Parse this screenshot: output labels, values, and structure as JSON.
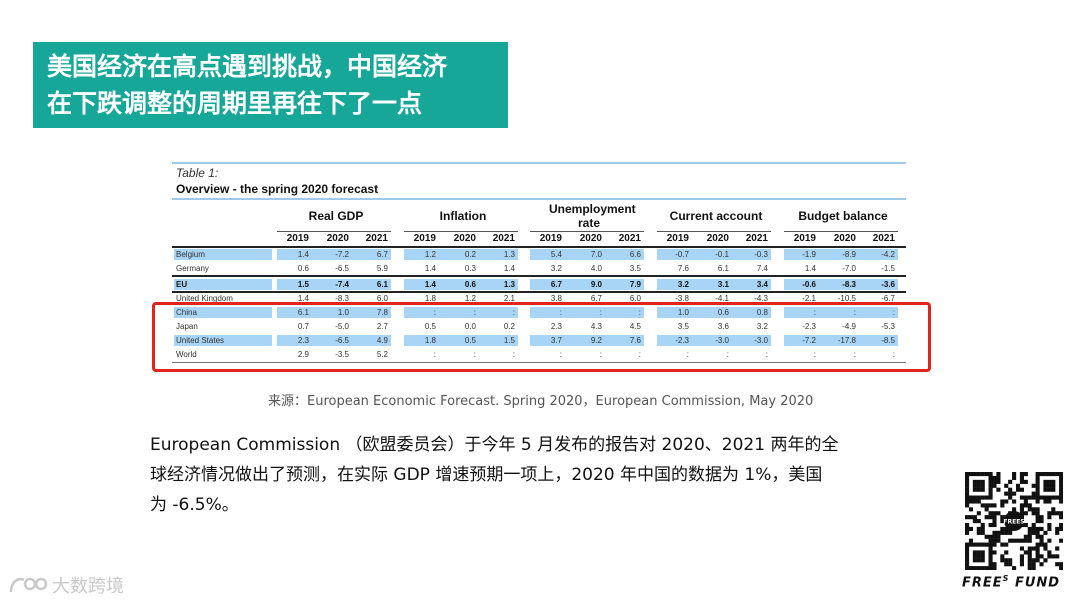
{
  "banner": {
    "line1": "美国经济在高点遇到挑战，中国经济",
    "line2": "在下跌调整的周期里再往下了一点"
  },
  "table": {
    "caption": "Table 1:",
    "subcaption": "Overview - the spring 2020 forecast",
    "groups": [
      {
        "label": "Real GDP"
      },
      {
        "label": "Inflation"
      },
      {
        "label": "Unemployment rate"
      },
      {
        "label": "Current account"
      },
      {
        "label": "Budget balance"
      }
    ],
    "years": [
      "2019",
      "2020",
      "2021"
    ],
    "rows": [
      {
        "label": "Belgium",
        "shaded": true,
        "bold": false,
        "values": [
          "1.4",
          "-7.2",
          "6.7",
          "1.2",
          "0.2",
          "1.3",
          "5.4",
          "7.0",
          "6.6",
          "-0.7",
          "-0.1",
          "-0.3",
          "-1.9",
          "-8.9",
          "-4.2"
        ]
      },
      {
        "label": "Germany",
        "shaded": false,
        "bold": false,
        "values": [
          "0.6",
          "-6.5",
          "5.9",
          "1.4",
          "0.3",
          "1.4",
          "3.2",
          "4.0",
          "3.5",
          "7.6",
          "6.1",
          "7.4",
          "1.4",
          "-7.0",
          "-1.5"
        ]
      },
      {
        "label": "EU",
        "shaded": true,
        "bold": true,
        "values": [
          "1.5",
          "-7.4",
          "6.1",
          "1.4",
          "0.6",
          "1.3",
          "6.7",
          "9.0",
          "7.9",
          "3.2",
          "3.1",
          "3.4",
          "-0.6",
          "-8.3",
          "-3.6"
        ]
      },
      {
        "label": "United Kingdom",
        "shaded": false,
        "bold": false,
        "values": [
          "1.4",
          "-8.3",
          "6.0",
          "1.8",
          "1.2",
          "2.1",
          "3.8",
          "6.7",
          "6.0",
          "-3.8",
          "-4.1",
          "-4.3",
          "-2.1",
          "-10.5",
          "-6.7"
        ]
      },
      {
        "label": "China",
        "shaded": true,
        "bold": false,
        "values": [
          "6.1",
          "1.0",
          "7.8",
          ":",
          ":",
          ":",
          ":",
          ":",
          ":",
          "1.0",
          "0.6",
          "0.8",
          ":",
          ":",
          ":"
        ]
      },
      {
        "label": "Japan",
        "shaded": false,
        "bold": false,
        "values": [
          "0.7",
          "-5.0",
          "2.7",
          "0.5",
          "0.0",
          "0.2",
          "2.3",
          "4.3",
          "4.5",
          "3.5",
          "3.6",
          "3.2",
          "-2.3",
          "-4.9",
          "-5.3"
        ]
      },
      {
        "label": "United States",
        "shaded": true,
        "bold": false,
        "values": [
          "2.3",
          "-6.5",
          "4.9",
          "1.8",
          "0.5",
          "1.5",
          "3.7",
          "9.2",
          "7.6",
          "-2.3",
          "-3.0",
          "-3.0",
          "-7.2",
          "-17.8",
          "-8.5"
        ]
      },
      {
        "label": "World",
        "shaded": false,
        "bold": false,
        "values": [
          "2.9",
          "-3.5",
          "5.2",
          ":",
          ":",
          ":",
          ":",
          ":",
          ":",
          ":",
          ":",
          ":",
          ":",
          ":",
          ":"
        ]
      }
    ]
  },
  "source": "来源：European Economic Forecast. Spring 2020，European Commission, May 2020",
  "body": {
    "line1": "European Commission （欧盟委员会）于今年 5 月发布的报告对 2020、2021 两年的全",
    "line2": "球经济情况做出了预测，在实际 GDP 增速预期一项上，2020 年中国的数据为 1%，美国",
    "line3": "为 -6.5%。"
  },
  "brand": {
    "name": "FREE FUND",
    "superscript": "S",
    "qr_badge": "FREES"
  },
  "watermark": "大数跨境",
  "colors": {
    "banner": "#17a799",
    "highlight": "#e0241e",
    "shade": "#a8d4f5"
  }
}
